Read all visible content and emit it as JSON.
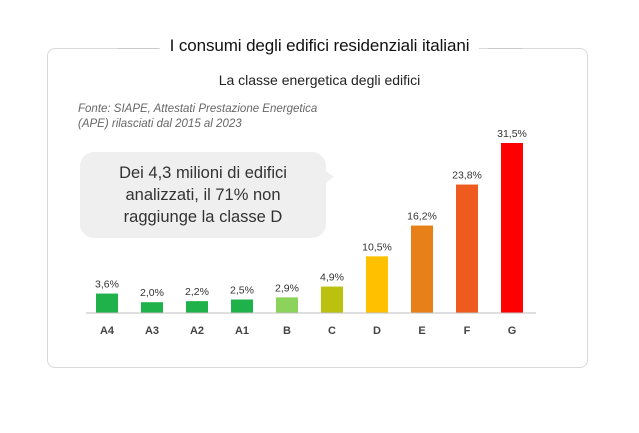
{
  "header": {
    "title": "I consumi degli edifici residenziali italiani",
    "subtitle": "La classe energetica degli edifici"
  },
  "source": {
    "line1": "Fonte: SIAPE, Attestati Prestazione Energetica",
    "line2": "(APE) rilasciati dal 2015 al 2023"
  },
  "callout": {
    "text": "Dei 4,3 milioni di edifici analizzati, il 71% non raggiunge la classe D"
  },
  "chart_data": {
    "type": "bar",
    "categories": [
      "A4",
      "A3",
      "A2",
      "A1",
      "B",
      "C",
      "D",
      "E",
      "F",
      "G"
    ],
    "values": [
      3.6,
      2.0,
      2.2,
      2.5,
      2.9,
      4.9,
      10.5,
      16.2,
      23.8,
      31.5
    ],
    "value_labels": [
      "3,6%",
      "2,0%",
      "2,2%",
      "2,5%",
      "2,9%",
      "4,9%",
      "10,5%",
      "16,2%",
      "23,8%",
      "31,5%"
    ],
    "colors": [
      "#1fb24a",
      "#1fb24a",
      "#1fb24a",
      "#1fb24a",
      "#8bd35a",
      "#bcc10f",
      "#ffc000",
      "#e8801a",
      "#ef5a1e",
      "#ff0000"
    ],
    "ylim": [
      0,
      31.5
    ],
    "grid": false,
    "legend": "none"
  }
}
